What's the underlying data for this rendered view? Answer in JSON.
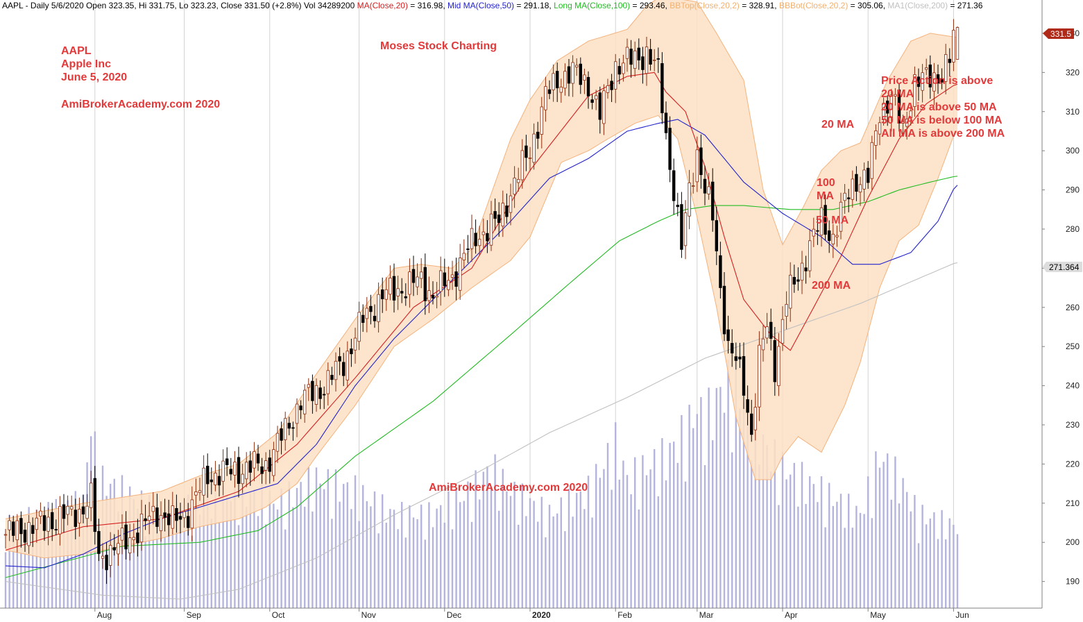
{
  "header": {
    "segments": [
      {
        "text": "AAPL - Daily 5/6/2020 Open 323.35, Hi 331.75, Lo 323.23, Close 331.50 (+2.8%) Vol 34289200 ",
        "color": "#000000"
      },
      {
        "text": "MA(Close,20)",
        "color": "#d42020"
      },
      {
        "text": " = 316.98, ",
        "color": "#000000"
      },
      {
        "text": "Mid MA(Close,50)",
        "color": "#2222cc"
      },
      {
        "text": " = 291.18, ",
        "color": "#000000"
      },
      {
        "text": "Long MA(Close,100)",
        "color": "#22bb22"
      },
      {
        "text": " = 293.46, ",
        "color": "#000000"
      },
      {
        "text": "BBTop(Close,20,2)",
        "color": "#f0b070"
      },
      {
        "text": " = 328.91, ",
        "color": "#000000"
      },
      {
        "text": "BBBot(Close,20,2)",
        "color": "#f0b070"
      },
      {
        "text": " = 305.06, ",
        "color": "#000000"
      },
      {
        "text": "MA1(Close,200)",
        "color": "#c0c0c0"
      },
      {
        "text": " = 271.36",
        "color": "#000000"
      }
    ]
  },
  "annotations": {
    "symbol": "AAPL",
    "company": "Apple Inc",
    "date": "June 5, 2020",
    "site": "AmiBrokerAcademy.com  2020",
    "center_title": "Moses Stock Charting",
    "watermark": "AmiBrokerAcademy.com  2020",
    "commentary": [
      "Price Action is above",
      "20 MA",
      "20 MA is above 50 MA",
      "50 MA is below 100 MA",
      "All MA is above 200 MA"
    ],
    "ma20_label": "20 MA",
    "ma100_label": [
      "100",
      "MA"
    ],
    "ma50_label": "50 MA",
    "ma200_label": "200 MA"
  },
  "price_tags": {
    "last": "331.5",
    "ma200": "271.364"
  },
  "colors": {
    "annotation": "#e23a3a",
    "up_candle": "#ffffff",
    "down_candle": "#000000",
    "candle_outline": "#8b2a0a",
    "band_fill": "#fde0c4",
    "band_edge": "#f4b27c",
    "ma20": "#d42020",
    "ma50": "#2222cc",
    "ma100": "#22bb22",
    "ma200": "#c0c0c0",
    "volume": "#b4b4dc",
    "last_tag": "#b02a1a",
    "ma200_tag": "#dddddd"
  },
  "chart_data": {
    "type": "candlestick",
    "symbol": "AAPL",
    "interval": "daily",
    "x_axis": {
      "labels": [
        "Aug",
        "Sep",
        "Oct",
        "Nov",
        "Dec",
        "2020",
        "Feb",
        "Mar",
        "Apr",
        "May",
        "Jun"
      ],
      "label_weeks": [
        4.6,
        9.2,
        13.6,
        18.2,
        22.6,
        27.0,
        31.4,
        35.6,
        40.0,
        44.4,
        48.8
      ],
      "x_range_weeks": [
        0,
        49.2
      ]
    },
    "y_axis": {
      "ticks": [
        190,
        200,
        210,
        220,
        230,
        240,
        250,
        260,
        270,
        280,
        290,
        300,
        310,
        320,
        330
      ],
      "range": [
        183.2,
        338.5
      ],
      "position": "right"
    },
    "grid": "vertical at month starts",
    "price_anchors": [
      {
        "week": 0.0,
        "price": 202
      },
      {
        "week": 2.0,
        "price": 205
      },
      {
        "week": 3.8,
        "price": 208
      },
      {
        "week": 4.4,
        "price": 211
      },
      {
        "week": 4.8,
        "price": 196
      },
      {
        "week": 5.8,
        "price": 199
      },
      {
        "week": 6.8,
        "price": 203
      },
      {
        "week": 7.8,
        "price": 208
      },
      {
        "week": 8.6,
        "price": 205
      },
      {
        "week": 9.4,
        "price": 208
      },
      {
        "week": 10.4,
        "price": 217
      },
      {
        "week": 11.4,
        "price": 218
      },
      {
        "week": 12.4,
        "price": 219
      },
      {
        "week": 13.4,
        "price": 220
      },
      {
        "week": 14.0,
        "price": 225
      },
      {
        "week": 15.2,
        "price": 236
      },
      {
        "week": 16.4,
        "price": 240
      },
      {
        "week": 17.4,
        "price": 246
      },
      {
        "week": 18.4,
        "price": 257
      },
      {
        "week": 19.4,
        "price": 263
      },
      {
        "week": 20.4,
        "price": 265
      },
      {
        "week": 21.4,
        "price": 267
      },
      {
        "week": 22.0,
        "price": 263
      },
      {
        "week": 23.0,
        "price": 268
      },
      {
        "week": 24.2,
        "price": 278
      },
      {
        "week": 25.4,
        "price": 282
      },
      {
        "week": 26.2,
        "price": 292
      },
      {
        "week": 27.0,
        "price": 300
      },
      {
        "week": 27.8,
        "price": 314
      },
      {
        "week": 28.6,
        "price": 319
      },
      {
        "week": 29.2,
        "price": 320
      },
      {
        "week": 30.0,
        "price": 317
      },
      {
        "week": 30.6,
        "price": 309
      },
      {
        "week": 31.4,
        "price": 322
      },
      {
        "week": 32.2,
        "price": 323
      },
      {
        "week": 33.0,
        "price": 325
      },
      {
        "week": 33.6,
        "price": 320
      },
      {
        "week": 34.0,
        "price": 304
      },
      {
        "week": 34.4,
        "price": 290
      },
      {
        "week": 34.8,
        "price": 275
      },
      {
        "week": 35.2,
        "price": 290
      },
      {
        "week": 35.6,
        "price": 300
      },
      {
        "week": 36.0,
        "price": 290
      },
      {
        "week": 36.4,
        "price": 283
      },
      {
        "week": 36.8,
        "price": 265
      },
      {
        "week": 37.2,
        "price": 250
      },
      {
        "week": 37.6,
        "price": 246
      },
      {
        "week": 38.0,
        "price": 240
      },
      {
        "week": 38.4,
        "price": 228
      },
      {
        "week": 38.8,
        "price": 247
      },
      {
        "week": 39.2,
        "price": 255
      },
      {
        "week": 39.6,
        "price": 245
      },
      {
        "week": 40.2,
        "price": 262
      },
      {
        "week": 40.8,
        "price": 268
      },
      {
        "week": 41.4,
        "price": 276
      },
      {
        "week": 42.0,
        "price": 282
      },
      {
        "week": 42.6,
        "price": 278
      },
      {
        "week": 43.2,
        "price": 287
      },
      {
        "week": 43.8,
        "price": 293
      },
      {
        "week": 44.4,
        "price": 293
      },
      {
        "week": 45.0,
        "price": 310
      },
      {
        "week": 45.6,
        "price": 314
      },
      {
        "week": 46.2,
        "price": 305
      },
      {
        "week": 46.8,
        "price": 318
      },
      {
        "week": 47.4,
        "price": 318
      },
      {
        "week": 48.2,
        "price": 320
      },
      {
        "week": 48.6,
        "price": 323
      },
      {
        "week": 48.9,
        "price": 331.5
      }
    ],
    "last_bar": {
      "open": 323.35,
      "high": 331.75,
      "low": 323.23,
      "close": 331.5,
      "change_pct": 2.8,
      "volume": 34289200
    },
    "series": [
      {
        "name": "MA(Close,20)",
        "points": [
          [
            0,
            198
          ],
          [
            4,
            204
          ],
          [
            8,
            206
          ],
          [
            12,
            213
          ],
          [
            15,
            225
          ],
          [
            18,
            242
          ],
          [
            21,
            260
          ],
          [
            24,
            270
          ],
          [
            27,
            295
          ],
          [
            30,
            314
          ],
          [
            32,
            319
          ],
          [
            33.4,
            320
          ],
          [
            34,
            315
          ],
          [
            35,
            310
          ],
          [
            36,
            296
          ],
          [
            37,
            278
          ],
          [
            38,
            262
          ],
          [
            39.4,
            253
          ],
          [
            40.4,
            249
          ],
          [
            41.6,
            260
          ],
          [
            43,
            273
          ],
          [
            44.4,
            288
          ],
          [
            46,
            303
          ],
          [
            47.4,
            312
          ],
          [
            48.9,
            317
          ]
        ]
      },
      {
        "name": "Mid MA(Close,50)",
        "points": [
          [
            0,
            194
          ],
          [
            2,
            193.5
          ],
          [
            4,
            197
          ],
          [
            6,
            202
          ],
          [
            8,
            206
          ],
          [
            10,
            209
          ],
          [
            12,
            212
          ],
          [
            14,
            215
          ],
          [
            16,
            225
          ],
          [
            18,
            240
          ],
          [
            20,
            252
          ],
          [
            22,
            262
          ],
          [
            24,
            272
          ],
          [
            26,
            282
          ],
          [
            28,
            293
          ],
          [
            30,
            298
          ],
          [
            32,
            305
          ],
          [
            33.6,
            307
          ],
          [
            34.6,
            308
          ],
          [
            36,
            304
          ],
          [
            38,
            292
          ],
          [
            40,
            284
          ],
          [
            42,
            278
          ],
          [
            43.6,
            271
          ],
          [
            45,
            271
          ],
          [
            46.6,
            274
          ],
          [
            48,
            282
          ],
          [
            48.9,
            291.2
          ]
        ]
      },
      {
        "name": "Long MA(Close,100)",
        "points": [
          [
            0,
            191
          ],
          [
            3,
            195
          ],
          [
            6,
            199
          ],
          [
            10,
            200
          ],
          [
            13,
            203
          ],
          [
            15,
            209
          ],
          [
            18,
            222
          ],
          [
            22,
            236
          ],
          [
            26,
            253
          ],
          [
            29,
            266
          ],
          [
            31.6,
            277
          ],
          [
            33.6,
            282
          ],
          [
            35,
            285
          ],
          [
            36.4,
            286
          ],
          [
            38,
            286
          ],
          [
            40.4,
            285
          ],
          [
            42.6,
            285
          ],
          [
            44.4,
            287
          ],
          [
            46,
            290
          ],
          [
            47.6,
            292
          ],
          [
            48.9,
            293.5
          ]
        ]
      },
      {
        "name": "MA1(Close,200)",
        "points": [
          [
            0,
            190
          ],
          [
            5,
            186.5
          ],
          [
            9,
            185.5
          ],
          [
            12,
            188
          ],
          [
            16,
            196
          ],
          [
            20,
            207
          ],
          [
            24,
            217
          ],
          [
            28,
            228
          ],
          [
            32,
            237
          ],
          [
            36,
            247
          ],
          [
            40,
            254
          ],
          [
            44,
            261
          ],
          [
            48.9,
            271.4
          ]
        ]
      },
      {
        "name": "BBTop(Close,20,2)",
        "points": [
          [
            0,
            206
          ],
          [
            4,
            210
          ],
          [
            8,
            213
          ],
          [
            10,
            217
          ],
          [
            12,
            220
          ],
          [
            14,
            228
          ],
          [
            16,
            243
          ],
          [
            18,
            257
          ],
          [
            20,
            270
          ],
          [
            21.4,
            271
          ],
          [
            23,
            270
          ],
          [
            24,
            275
          ],
          [
            26,
            303
          ],
          [
            27,
            313
          ],
          [
            28.4,
            323
          ],
          [
            30,
            328
          ],
          [
            32,
            331
          ],
          [
            33,
            337
          ],
          [
            33.6,
            339
          ],
          [
            34.4,
            339
          ],
          [
            35.6,
            338
          ],
          [
            36.6,
            330
          ],
          [
            38,
            318
          ],
          [
            39,
            290
          ],
          [
            40,
            276
          ],
          [
            41,
            285
          ],
          [
            42,
            295
          ],
          [
            43,
            300
          ],
          [
            44,
            302
          ],
          [
            45.4,
            318
          ],
          [
            46.6,
            328
          ],
          [
            47.6,
            330
          ],
          [
            48.9,
            329
          ]
        ]
      },
      {
        "name": "BBBot(Close,20,2)",
        "points": [
          [
            0,
            198
          ],
          [
            2,
            196
          ],
          [
            4,
            197
          ],
          [
            6,
            199
          ],
          [
            8,
            201
          ],
          [
            10,
            204
          ],
          [
            12,
            206
          ],
          [
            13.4,
            209
          ],
          [
            15,
            215
          ],
          [
            16,
            222
          ],
          [
            18,
            235
          ],
          [
            20,
            250
          ],
          [
            22,
            257
          ],
          [
            24,
            265
          ],
          [
            26,
            272
          ],
          [
            27,
            278
          ],
          [
            28.6,
            297
          ],
          [
            30,
            300
          ],
          [
            31,
            303
          ],
          [
            32.4,
            307
          ],
          [
            33.6,
            309
          ],
          [
            34.6,
            303
          ],
          [
            35.6,
            283
          ],
          [
            36.6,
            260
          ],
          [
            37.6,
            232
          ],
          [
            38.6,
            216
          ],
          [
            39.4,
            216
          ],
          [
            40,
            222
          ],
          [
            40.8,
            227
          ],
          [
            42,
            223
          ],
          [
            43.2,
            235
          ],
          [
            44,
            246
          ],
          [
            45,
            265
          ],
          [
            46,
            277
          ],
          [
            47,
            281
          ],
          [
            48,
            293
          ],
          [
            48.9,
            305.1
          ]
        ]
      },
      {
        "name": "Volume",
        "points": [
          [
            0,
            7
          ],
          [
            4,
            9
          ],
          [
            4.4,
            16
          ],
          [
            4.8,
            11
          ],
          [
            6,
            10
          ],
          [
            8,
            8
          ],
          [
            10,
            9
          ],
          [
            12,
            10
          ],
          [
            14,
            9
          ],
          [
            16,
            11
          ],
          [
            18,
            10
          ],
          [
            20,
            8
          ],
          [
            22,
            8
          ],
          [
            24,
            10
          ],
          [
            25,
            12
          ],
          [
            26,
            10
          ],
          [
            28,
            8
          ],
          [
            30,
            10
          ],
          [
            31.4,
            14
          ],
          [
            32,
            11
          ],
          [
            34,
            13
          ],
          [
            35,
            15
          ],
          [
            35.6,
            17
          ],
          [
            36,
            16
          ],
          [
            37,
            19
          ],
          [
            38,
            18
          ],
          [
            39,
            14
          ],
          [
            40,
            12
          ],
          [
            42,
            10
          ],
          [
            44,
            8
          ],
          [
            45,
            13
          ],
          [
            46,
            11
          ],
          [
            47,
            8
          ],
          [
            48.9,
            7
          ]
        ]
      }
    ],
    "notes": ""
  }
}
